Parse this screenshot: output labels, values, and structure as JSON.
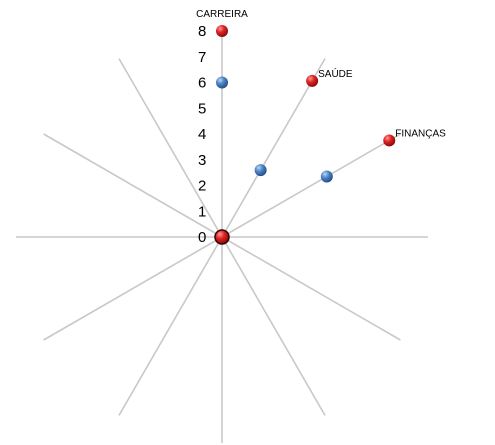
{
  "chart_data": {
    "type": "scatter",
    "subtype": "radar-spokes",
    "spoke_count": 12,
    "radial_ticks": [
      "0",
      "1",
      "2",
      "3",
      "4",
      "5",
      "6",
      "7",
      "8"
    ],
    "r_range": [
      0,
      8
    ],
    "grid": false,
    "categories": [
      "CARREIRA",
      "SAÚDE",
      "FINANÇAS"
    ],
    "series": [
      {
        "values": [
          8,
          7,
          7.5
        ],
        "color": "#d42a2a",
        "marker": "red-sphere"
      },
      {
        "values": [
          6,
          3,
          4.7
        ],
        "color": "#4f86c6",
        "marker": "blue-sphere"
      }
    ]
  }
}
